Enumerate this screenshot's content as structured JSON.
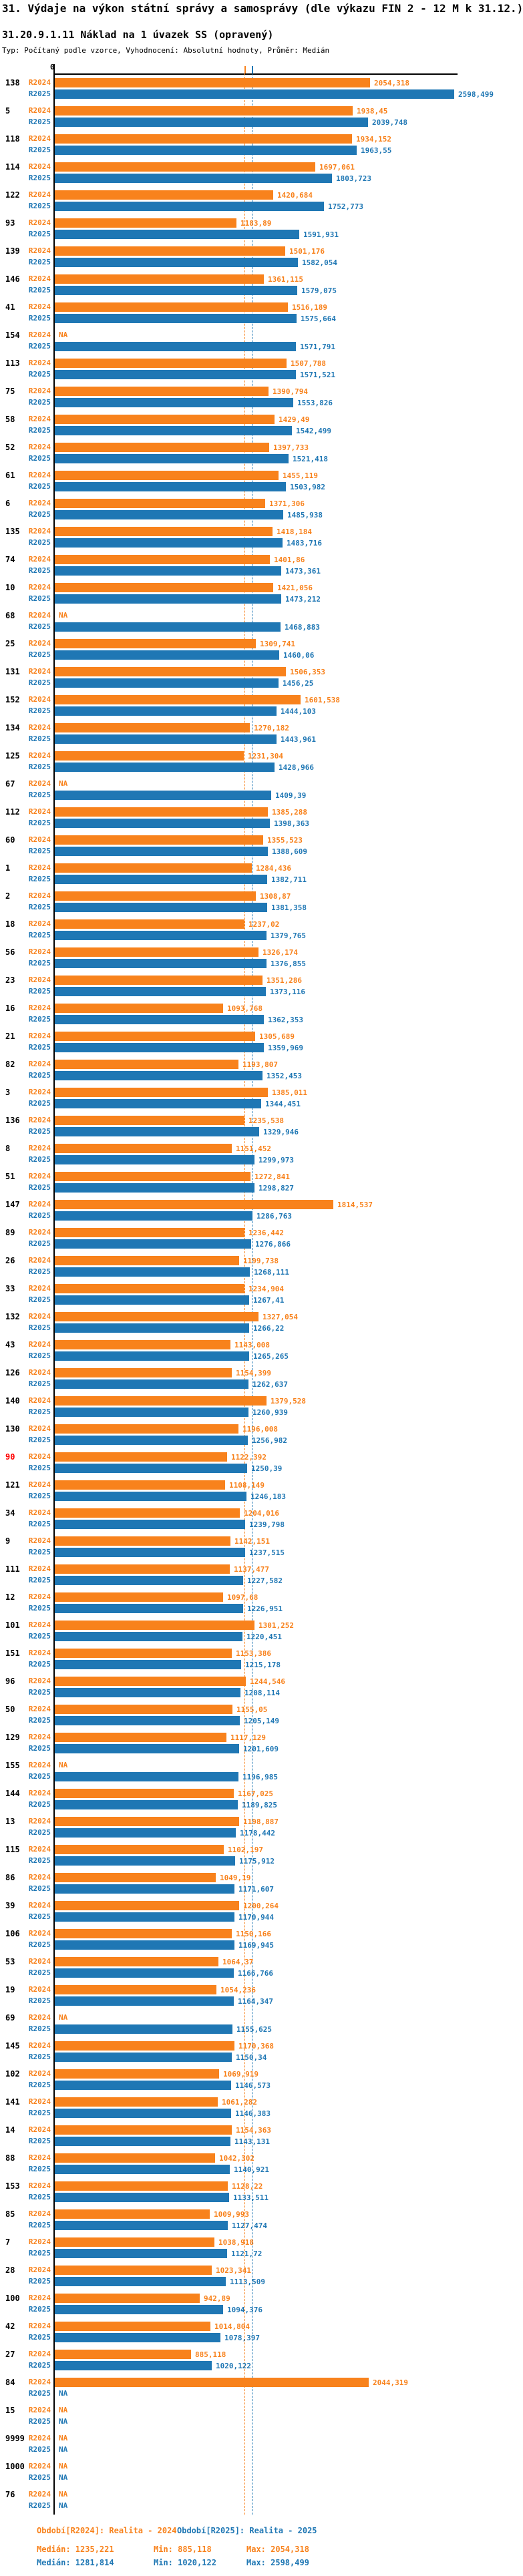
{
  "title": "31. Výdaje na výkon státní správy a samosprávy (dle výkazu FIN 2 - 12 M k 31.12.)",
  "subtitle": "31.20.9.1.11 Náklad na 1 úvazek SS (opravený)",
  "meta": "Typ: Počítaný podle vzorce, Vyhodnocení: Absolutní hodnoty, Průměr: Medián",
  "colors": {
    "r2024": "#F8821C",
    "r2025": "#1F77B4",
    "highlight_id": "#FF0000",
    "axis": "#000000"
  },
  "axis": {
    "zero_label": "0",
    "min": 0,
    "max": 2622
  },
  "na_label": "NA",
  "series_labels": {
    "r2024": "R2024",
    "r2025": "R2025"
  },
  "legend": {
    "r2024": "Období[R2024]: Realita - 2024",
    "r2025": "Období[R2025]: Realita - 2025"
  },
  "stats": {
    "r2024": {
      "median": "Medián: 1235,221",
      "min": "Min: 885,118",
      "max": "Max: 2054,318"
    },
    "r2025": {
      "median": "Medián: 1281,814",
      "min": "Min: 1020,122",
      "max": "Max: 2598,499"
    }
  },
  "chart_data": {
    "type": "bar",
    "orientation": "horizontal",
    "title": "31.20.9.1.11 Náklad na 1 úvazek SS (opravený)",
    "xlabel": "",
    "ylabel": "",
    "xlim": [
      0,
      2622
    ],
    "grid": false,
    "legend_position": "bottom",
    "series_names": [
      "R2024",
      "R2025"
    ],
    "medians": {
      "R2024": 1235.221,
      "R2025": 1281.814
    },
    "summary": {
      "R2024": {
        "median": 1235.221,
        "min": 885.118,
        "max": 2054.318
      },
      "R2025": {
        "median": 1281.814,
        "min": 1020.122,
        "max": 2598.499
      }
    },
    "highlight_ids": [
      "90"
    ],
    "na_text": "NA",
    "rows": [
      [
        "138",
        "2054,318",
        "2598,499"
      ],
      [
        "5",
        "1938,45",
        "2039,748"
      ],
      [
        "118",
        "1934,152",
        "1963,55"
      ],
      [
        "114",
        "1697,061",
        "1803,723"
      ],
      [
        "122",
        "1420,684",
        "1752,773"
      ],
      [
        "93",
        "1183,89",
        "1591,931"
      ],
      [
        "139",
        "1501,176",
        "1582,054"
      ],
      [
        "146",
        "1361,115",
        "1579,075"
      ],
      [
        "41",
        "1516,189",
        "1575,664"
      ],
      [
        "154",
        null,
        "1571,791"
      ],
      [
        "113",
        "1507,788",
        "1571,521"
      ],
      [
        "75",
        "1390,794",
        "1553,826"
      ],
      [
        "58",
        "1429,49",
        "1542,499"
      ],
      [
        "52",
        "1397,733",
        "1521,418"
      ],
      [
        "61",
        "1455,119",
        "1503,982"
      ],
      [
        "6",
        "1371,306",
        "1485,938"
      ],
      [
        "135",
        "1418,184",
        "1483,716"
      ],
      [
        "74",
        "1401,86",
        "1473,361"
      ],
      [
        "10",
        "1421,056",
        "1473,212"
      ],
      [
        "68",
        null,
        "1468,883"
      ],
      [
        "25",
        "1309,741",
        "1460,06"
      ],
      [
        "131",
        "1506,353",
        "1456,25"
      ],
      [
        "152",
        "1601,538",
        "1444,103"
      ],
      [
        "134",
        "1270,182",
        "1443,961"
      ],
      [
        "125",
        "1231,304",
        "1428,966"
      ],
      [
        "67",
        null,
        "1409,39"
      ],
      [
        "112",
        "1385,288",
        "1398,363"
      ],
      [
        "60",
        "1355,523",
        "1388,609"
      ],
      [
        "1",
        "1284,436",
        "1382,711"
      ],
      [
        "2",
        "1308,87",
        "1381,358"
      ],
      [
        "18",
        "1237,02",
        "1379,765"
      ],
      [
        "56",
        "1326,174",
        "1376,855"
      ],
      [
        "23",
        "1351,286",
        "1373,116"
      ],
      [
        "16",
        "1093,768",
        "1362,353"
      ],
      [
        "21",
        "1305,689",
        "1359,969"
      ],
      [
        "82",
        "1193,807",
        "1352,453"
      ],
      [
        "3",
        "1385,011",
        "1344,451"
      ],
      [
        "136",
        "1235,538",
        "1329,946"
      ],
      [
        "8",
        "1151,452",
        "1299,973"
      ],
      [
        "51",
        "1272,841",
        "1298,827"
      ],
      [
        "147",
        "1814,537",
        "1286,763"
      ],
      [
        "89",
        "1236,442",
        "1276,866"
      ],
      [
        "26",
        "1199,738",
        "1268,111"
      ],
      [
        "33",
        "1234,904",
        "1267,41"
      ],
      [
        "132",
        "1327,054",
        "1266,22"
      ],
      [
        "43",
        "1143,008",
        "1265,265"
      ],
      [
        "126",
        "1154,399",
        "1262,637"
      ],
      [
        "140",
        "1379,528",
        "1260,939"
      ],
      [
        "130",
        "1196,008",
        "1256,982"
      ],
      [
        "90",
        "1122,392",
        "1250,39"
      ],
      [
        "121",
        "1108,149",
        "1246,183"
      ],
      [
        "34",
        "1204,016",
        "1239,798"
      ],
      [
        "9",
        "1142,151",
        "1237,515"
      ],
      [
        "111",
        "1137,477",
        "1227,582"
      ],
      [
        "12",
        "1097,68",
        "1226,951"
      ],
      [
        "101",
        "1301,252",
        "1220,451"
      ],
      [
        "151",
        "1153,386",
        "1215,178"
      ],
      [
        "96",
        "1244,546",
        "1208,114"
      ],
      [
        "50",
        "1155,05",
        "1205,149"
      ],
      [
        "129",
        "1117,129",
        "1201,609"
      ],
      [
        "155",
        null,
        "1196,985"
      ],
      [
        "144",
        "1167,025",
        "1189,825"
      ],
      [
        "13",
        "1198,887",
        "1178,442"
      ],
      [
        "115",
        "1102,197",
        "1175,912"
      ],
      [
        "86",
        "1049,19",
        "1171,607"
      ],
      [
        "39",
        "1200,264",
        "1170,944"
      ],
      [
        "106",
        "1150,166",
        "1169,945"
      ],
      [
        "53",
        "1064,37",
        "1166,766"
      ],
      [
        "19",
        "1054,236",
        "1164,347"
      ],
      [
        "69",
        null,
        "1155,625"
      ],
      [
        "145",
        "1170,368",
        "1150,34"
      ],
      [
        "102",
        "1069,919",
        "1146,573"
      ],
      [
        "141",
        "1061,282",
        "1146,383"
      ],
      [
        "14",
        "1154,363",
        "1143,131"
      ],
      [
        "88",
        "1042,302",
        "1140,921"
      ],
      [
        "153",
        "1128,22",
        "1133,511"
      ],
      [
        "85",
        "1009,993",
        "1127,474"
      ],
      [
        "7",
        "1038,918",
        "1121,72"
      ],
      [
        "28",
        "1023,341",
        "1113,509"
      ],
      [
        "100",
        "942,89",
        "1094,376"
      ],
      [
        "42",
        "1014,804",
        "1078,397"
      ],
      [
        "27",
        "885,118",
        "1020,122"
      ],
      [
        "84",
        "2044,319",
        null
      ],
      [
        "15",
        null,
        null
      ],
      [
        "9999",
        null,
        null
      ],
      [
        "1000",
        null,
        null
      ],
      [
        "76",
        null,
        null
      ]
    ]
  }
}
